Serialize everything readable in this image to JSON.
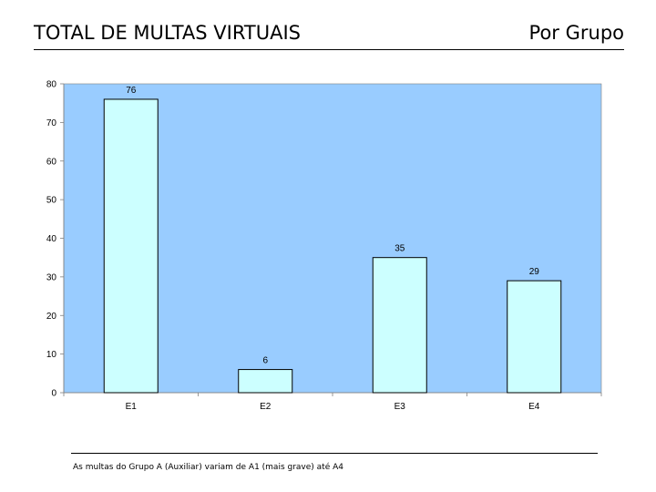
{
  "header": {
    "title": "TOTAL DE MULTAS VIRTUAIS",
    "subtitle": "Por Grupo"
  },
  "footnote": "As multas do Grupo A (Auxiliar) variam de A1 (mais grave) até A4",
  "colors": {
    "plot_background": "#99CCFF",
    "bar_fill": "#CCFFFF",
    "bar_stroke": "#000000"
  },
  "chart_data": {
    "type": "bar",
    "categories": [
      "E1",
      "E2",
      "E3",
      "E4"
    ],
    "values": [
      76,
      6,
      35,
      29
    ],
    "data_labels": [
      "76",
      "6",
      "35",
      "29"
    ],
    "ylim": [
      0,
      80
    ],
    "yticks": [
      "0",
      "10",
      "20",
      "30",
      "40",
      "50",
      "60",
      "70",
      "80"
    ],
    "title": "",
    "xlabel": "",
    "ylabel": "",
    "grid": false,
    "legend": "none"
  }
}
